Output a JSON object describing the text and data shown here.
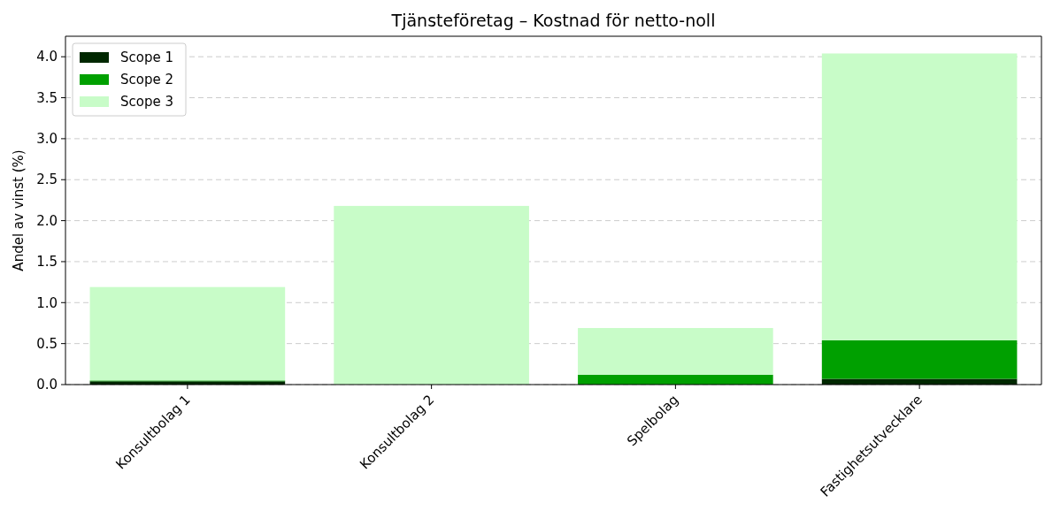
{
  "chart_data": {
    "type": "bar",
    "title": "Tjänsteföretag – Kostnad för netto-noll",
    "ylabel": "Andel av vinst (%)",
    "categories": [
      "Konsultbolag 1",
      "Konsultbolag 2",
      "Spelbolag",
      "Fastighetsutvecklare"
    ],
    "stacked": true,
    "series": [
      {
        "name": "Scope 1",
        "color": "#002800",
        "values": [
          0.04,
          0,
          0,
          0.07
        ]
      },
      {
        "name": "Scope 2",
        "color": "#00a000",
        "values": [
          0.01,
          0,
          0.12,
          0.47
        ]
      },
      {
        "name": "Scope 3",
        "color": "#c8fcc8",
        "values": [
          1.14,
          2.18,
          0.57,
          3.5
        ]
      }
    ],
    "ylim": [
      0,
      4.25
    ],
    "yticks": [
      {
        "value": 0,
        "label": "0.0"
      },
      {
        "value": 0.5,
        "label": "0.5"
      },
      {
        "value": 1,
        "label": "1.0"
      },
      {
        "value": 1.5,
        "label": "1.5"
      },
      {
        "value": 2,
        "label": "2.0"
      },
      {
        "value": 2.5,
        "label": "2.5"
      },
      {
        "value": 3,
        "label": "3.0"
      },
      {
        "value": 3.5,
        "label": "3.5"
      },
      {
        "value": 4,
        "label": "4.0"
      }
    ],
    "grid": "y",
    "legend": "top left"
  }
}
